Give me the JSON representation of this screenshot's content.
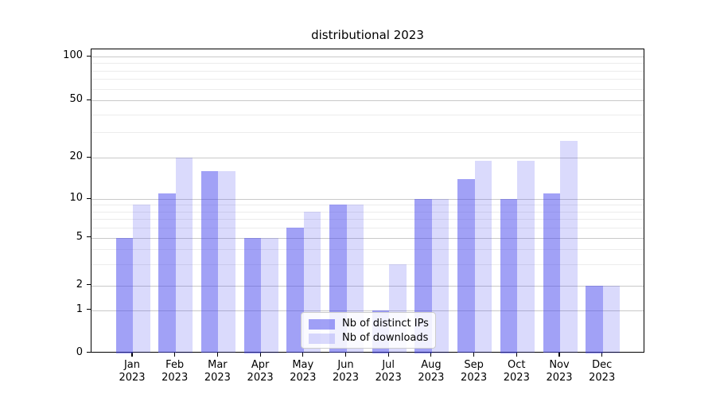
{
  "chart_data": {
    "type": "bar",
    "title": "distributional 2023",
    "categories": [
      "Jan",
      "Feb",
      "Mar",
      "Apr",
      "May",
      "Jun",
      "Jul",
      "Aug",
      "Sep",
      "Oct",
      "Nov",
      "Dec"
    ],
    "category_year_label": "2023",
    "series": [
      {
        "name": "Nb of distinct IPs",
        "base_color": "#4444ee",
        "alpha": 0.5,
        "effective_color": "#a2a2f6",
        "values": [
          5,
          11,
          16,
          5,
          6,
          9,
          1,
          10,
          14,
          10,
          11,
          2
        ]
      },
      {
        "name": "Nb of downloads",
        "base_color": "#4444ee",
        "alpha": 0.2,
        "effective_color": "#dadafb",
        "values": [
          9,
          20,
          16,
          5,
          8,
          9,
          3,
          10,
          19,
          19,
          26,
          2
        ]
      }
    ],
    "xlabel": "",
    "ylabel": "",
    "yscale": "symlog-like",
    "ytick_values": [
      0,
      1,
      2,
      5,
      10,
      20,
      50,
      100
    ],
    "ytick_labels": [
      "0",
      "1",
      "2",
      "5",
      "10",
      "20",
      "50",
      "100"
    ],
    "ylim": [
      0,
      150
    ],
    "grid": true,
    "legend_position": "lower center"
  }
}
